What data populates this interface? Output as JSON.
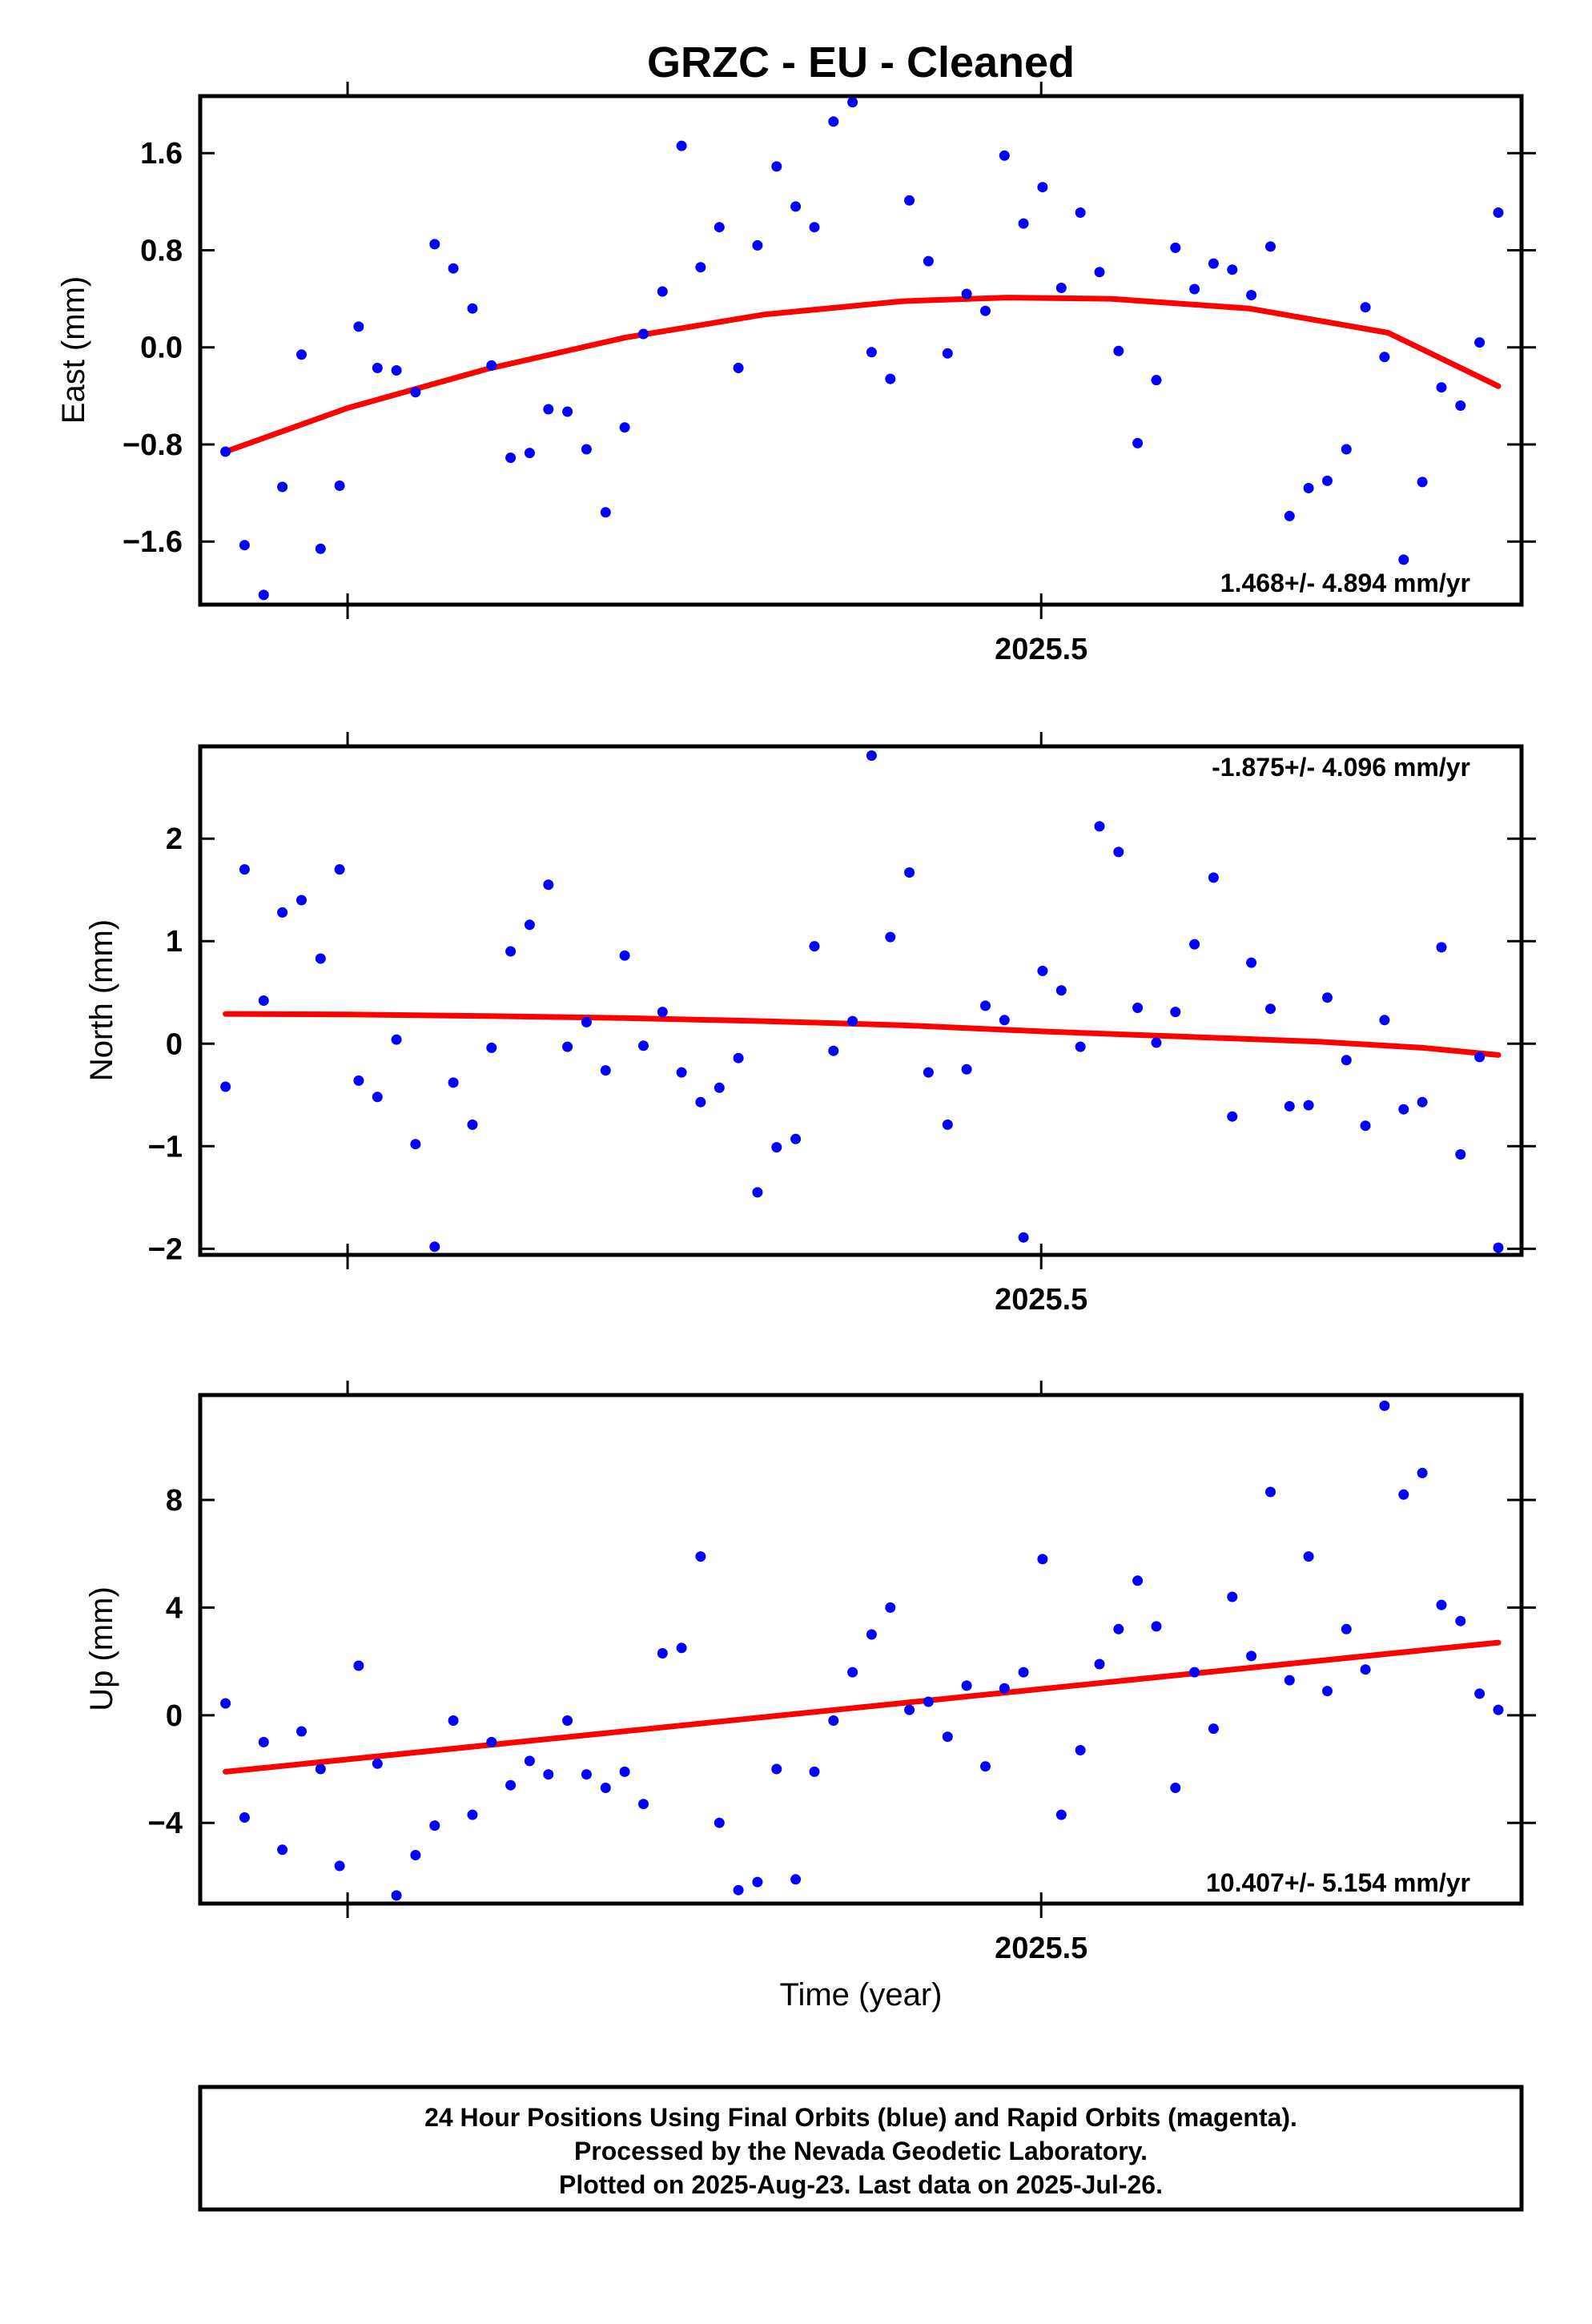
{
  "title": "GRZC  - EU - Cleaned",
  "colors": {
    "final_orbit_points": "#0000ff",
    "fit_line": "#ff0000",
    "frame": "#000000"
  },
  "xlabel": "Time (year)",
  "footer": [
    "24 Hour Positions Using Final Orbits (blue) and Rapid Orbits (magenta).",
    "Processed by the Nevada Geodetic Laboratory.",
    "Plotted on 2025-Aug-23. Last data on 2025-Jul-26."
  ],
  "chart_data": [
    {
      "type": "scatter",
      "ylabel": "East (mm)",
      "rate_label": "1.468+/- 4.894 mm/yr",
      "rate_position": "bottom-right",
      "xlim": [
        2025.2575,
        2025.6385
      ],
      "ylim": [
        -2.12,
        2.07
      ],
      "xticks": [
        2025.3,
        2025.5
      ],
      "xtick_labels": [
        "",
        "2025.5"
      ],
      "yticks": [
        -1.6,
        -0.8,
        0.0,
        0.8,
        1.6
      ],
      "ytick_labels": [
        "−1.6",
        "−0.8",
        "0.0",
        "0.8",
        "1.6"
      ],
      "x": [
        2025.2648,
        2025.2703,
        2025.2758,
        2025.2812,
        2025.2867,
        2025.2922,
        2025.2977,
        2025.3032,
        2025.3086,
        2025.3141,
        2025.3196,
        2025.3251,
        2025.3305,
        2025.336,
        2025.3415,
        2025.347,
        2025.3525,
        2025.3579,
        2025.3634,
        2025.3689,
        2025.3744,
        2025.3799,
        2025.3853,
        2025.3908,
        2025.3963,
        2025.4018,
        2025.4072,
        2025.4127,
        2025.4182,
        2025.4237,
        2025.4292,
        2025.4346,
        2025.4401,
        2025.4456,
        2025.4511,
        2025.4565,
        2025.462,
        2025.4675,
        2025.473,
        2025.4785,
        2025.4839,
        2025.4894,
        2025.4949,
        2025.5004,
        2025.5058,
        2025.5113,
        2025.5168,
        2025.5223,
        2025.5278,
        2025.5332,
        2025.5387,
        2025.5442,
        2025.5497,
        2025.5551,
        2025.5606,
        2025.5661,
        2025.5716,
        2025.5771,
        2025.5825,
        2025.588,
        2025.5935,
        2025.599,
        2025.6045,
        2025.6099,
        2025.6154,
        2025.6209,
        2025.6264,
        2025.6318
      ],
      "y": [
        -0.86,
        -1.63,
        -2.04,
        -1.15,
        -0.06,
        -1.66,
        -1.14,
        0.17,
        -0.17,
        -0.19,
        -0.37,
        0.85,
        0.65,
        0.32,
        -0.15,
        -0.91,
        -0.87,
        -0.51,
        -0.53,
        -0.84,
        -1.36,
        -0.66,
        0.11,
        0.46,
        1.66,
        0.66,
        0.99,
        -0.17,
        0.84,
        1.49,
        1.16,
        0.99,
        1.86,
        2.02,
        -0.04,
        -0.26,
        1.21,
        0.71,
        -0.05,
        0.44,
        0.3,
        1.58,
        1.02,
        1.32,
        0.49,
        1.11,
        0.62,
        -0.03,
        -0.79,
        -0.27,
        0.82,
        0.48,
        0.69,
        0.64,
        0.43,
        0.83,
        -1.39,
        -1.16,
        -1.1,
        -0.84,
        0.33,
        -0.08,
        -1.75,
        -1.11,
        -0.33,
        -0.48,
        0.04,
        1.11
      ],
      "fit": [
        {
          "x": 2025.2648,
          "y": -0.86
        },
        {
          "x": 2025.3,
          "y": -0.5
        },
        {
          "x": 2025.34,
          "y": -0.18
        },
        {
          "x": 2025.38,
          "y": 0.08
        },
        {
          "x": 2025.42,
          "y": 0.27
        },
        {
          "x": 2025.46,
          "y": 0.38
        },
        {
          "x": 2025.49,
          "y": 0.41
        },
        {
          "x": 2025.52,
          "y": 0.4
        },
        {
          "x": 2025.56,
          "y": 0.32
        },
        {
          "x": 2025.6,
          "y": 0.12
        },
        {
          "x": 2025.6318,
          "y": -0.32
        }
      ]
    },
    {
      "type": "scatter",
      "ylabel": "North (mm)",
      "rate_label": "-1.875+/- 4.096 mm/yr",
      "rate_position": "top-right",
      "xlim": [
        2025.2575,
        2025.6385
      ],
      "ylim": [
        -2.06,
        2.9
      ],
      "xticks": [
        2025.3,
        2025.5
      ],
      "xtick_labels": [
        "",
        "2025.5"
      ],
      "yticks": [
        -2,
        -1,
        0,
        1,
        2
      ],
      "ytick_labels": [
        "−2",
        "−1",
        "0",
        "1",
        "2"
      ],
      "x": [
        2025.2648,
        2025.2703,
        2025.2758,
        2025.2812,
        2025.2867,
        2025.2922,
        2025.2977,
        2025.3032,
        2025.3086,
        2025.3141,
        2025.3196,
        2025.3251,
        2025.3305,
        2025.336,
        2025.3415,
        2025.347,
        2025.3525,
        2025.3579,
        2025.3634,
        2025.3689,
        2025.3744,
        2025.3799,
        2025.3853,
        2025.3908,
        2025.3963,
        2025.4018,
        2025.4072,
        2025.4127,
        2025.4182,
        2025.4237,
        2025.4292,
        2025.4346,
        2025.4401,
        2025.4456,
        2025.4511,
        2025.4565,
        2025.462,
        2025.4675,
        2025.473,
        2025.4785,
        2025.4839,
        2025.4894,
        2025.4949,
        2025.5004,
        2025.5058,
        2025.5113,
        2025.5168,
        2025.5223,
        2025.5278,
        2025.5332,
        2025.5387,
        2025.5442,
        2025.5497,
        2025.5551,
        2025.5606,
        2025.5661,
        2025.5716,
        2025.5771,
        2025.5825,
        2025.588,
        2025.5935,
        2025.599,
        2025.6045,
        2025.6099,
        2025.6154,
        2025.6209,
        2025.6264,
        2025.6318
      ],
      "y": [
        -0.42,
        1.7,
        0.42,
        1.28,
        1.4,
        0.83,
        1.7,
        -0.36,
        -0.52,
        0.04,
        -0.98,
        -1.98,
        -0.38,
        -0.79,
        -0.04,
        0.9,
        1.16,
        1.55,
        -0.03,
        0.21,
        -0.26,
        0.86,
        -0.02,
        0.31,
        -0.28,
        -0.57,
        -0.43,
        -0.14,
        -1.45,
        -1.01,
        -0.93,
        0.95,
        -0.07,
        0.22,
        2.81,
        1.04,
        1.67,
        -0.28,
        -0.79,
        -0.25,
        0.37,
        0.23,
        -1.89,
        0.71,
        0.52,
        -0.03,
        2.12,
        1.87,
        0.35,
        0.01,
        0.31,
        0.97,
        1.62,
        -0.71,
        0.79,
        0.34,
        -0.61,
        -0.6,
        0.45,
        -0.16,
        -0.8,
        0.23,
        -0.64,
        -0.57,
        0.94,
        -1.08,
        -0.13,
        -1.99
      ],
      "fit": [
        {
          "x": 2025.2648,
          "y": 0.29
        },
        {
          "x": 2025.3,
          "y": 0.285
        },
        {
          "x": 2025.34,
          "y": 0.27
        },
        {
          "x": 2025.38,
          "y": 0.25
        },
        {
          "x": 2025.42,
          "y": 0.22
        },
        {
          "x": 2025.46,
          "y": 0.18
        },
        {
          "x": 2025.5,
          "y": 0.12
        },
        {
          "x": 2025.54,
          "y": 0.07
        },
        {
          "x": 2025.58,
          "y": 0.02
        },
        {
          "x": 2025.61,
          "y": -0.04
        },
        {
          "x": 2025.6318,
          "y": -0.11
        }
      ]
    },
    {
      "type": "scatter",
      "ylabel": "Up (mm)",
      "rate_label": "10.407+/- 5.154 mm/yr",
      "rate_position": "bottom-right",
      "xlim": [
        2025.2575,
        2025.6385
      ],
      "ylim": [
        -7.0,
        11.9
      ],
      "xticks": [
        2025.3,
        2025.5
      ],
      "xtick_labels": [
        "",
        "2025.5"
      ],
      "yticks": [
        -4,
        0,
        4,
        8
      ],
      "ytick_labels": [
        "−4",
        "0",
        "4",
        "8"
      ],
      "x": [
        2025.2648,
        2025.2703,
        2025.2758,
        2025.2812,
        2025.2867,
        2025.2922,
        2025.2977,
        2025.3032,
        2025.3086,
        2025.3141,
        2025.3196,
        2025.3251,
        2025.3305,
        2025.336,
        2025.3415,
        2025.347,
        2025.3525,
        2025.3579,
        2025.3634,
        2025.3689,
        2025.3744,
        2025.3799,
        2025.3853,
        2025.3908,
        2025.3963,
        2025.4018,
        2025.4072,
        2025.4127,
        2025.4182,
        2025.4237,
        2025.4292,
        2025.4346,
        2025.4401,
        2025.4456,
        2025.4511,
        2025.4565,
        2025.462,
        2025.4675,
        2025.473,
        2025.4785,
        2025.4839,
        2025.4894,
        2025.4949,
        2025.5004,
        2025.5058,
        2025.5113,
        2025.5168,
        2025.5223,
        2025.5278,
        2025.5332,
        2025.5387,
        2025.5442,
        2025.5497,
        2025.5551,
        2025.5606,
        2025.5661,
        2025.5716,
        2025.5771,
        2025.5825,
        2025.588,
        2025.5935,
        2025.599,
        2025.6045,
        2025.6099,
        2025.6154,
        2025.6209,
        2025.6264,
        2025.6318
      ],
      "y": [
        0.44,
        -3.8,
        -1.0,
        -5.0,
        -0.6,
        -2.0,
        -5.6,
        1.84,
        -1.8,
        -6.7,
        -5.2,
        -4.1,
        -0.2,
        -3.7,
        -1.0,
        -2.6,
        -1.7,
        -2.2,
        -0.2,
        -2.2,
        -2.7,
        -2.1,
        -3.3,
        2.3,
        2.5,
        5.9,
        -4.0,
        -6.5,
        -6.2,
        -2.0,
        -6.1,
        -2.1,
        -0.2,
        1.6,
        3.0,
        4.0,
        0.2,
        0.5,
        -0.8,
        1.1,
        -1.9,
        1.0,
        1.6,
        5.8,
        -3.7,
        -1.3,
        1.9,
        3.2,
        5.0,
        3.3,
        -2.7,
        1.6,
        -0.5,
        4.4,
        2.2,
        8.3,
        1.3,
        5.9,
        0.9,
        3.2,
        1.7,
        11.5,
        8.2,
        9.0,
        4.1,
        3.5,
        0.8,
        0.2
      ],
      "fit": [
        {
          "x": 2025.2648,
          "y": -2.1
        },
        {
          "x": 2025.6318,
          "y": 2.7
        }
      ]
    }
  ]
}
